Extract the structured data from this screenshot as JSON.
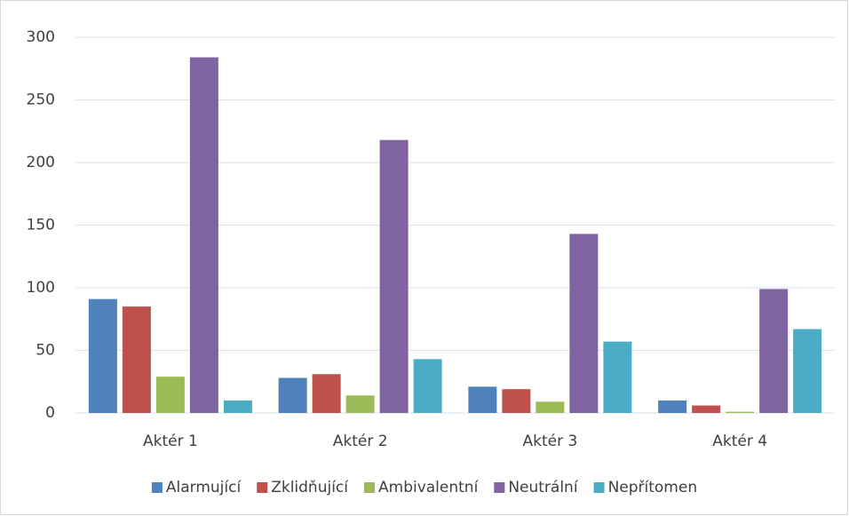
{
  "chart_data": {
    "type": "bar",
    "categories": [
      "Aktér 1",
      "Aktér 2",
      "Aktér 3",
      "Aktér 4"
    ],
    "series": [
      {
        "name": "Alarmující",
        "color": "#4f81bd",
        "values": [
          91,
          28,
          21,
          10
        ]
      },
      {
        "name": "Zklidňující",
        "color": "#c0504d",
        "values": [
          85,
          31,
          19,
          6
        ]
      },
      {
        "name": "Ambivalentní",
        "color": "#9bbb59",
        "values": [
          29,
          14,
          9,
          1
        ]
      },
      {
        "name": "Neutrální",
        "color": "#8064a2",
        "values": [
          284,
          218,
          143,
          99
        ]
      },
      {
        "name": "Nepřítomen",
        "color": "#4bacc6",
        "values": [
          10,
          43,
          57,
          67
        ]
      }
    ],
    "ylim": [
      0,
      300
    ],
    "yticks": [
      0,
      50,
      100,
      150,
      200,
      250,
      300
    ],
    "grid": true,
    "legend": "bottom"
  }
}
